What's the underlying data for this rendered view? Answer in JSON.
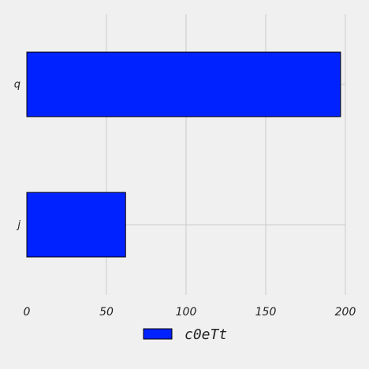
{
  "chart_data": {
    "type": "bar",
    "orientation": "horizontal",
    "categories": [
      "j",
      "q"
    ],
    "series": [
      {
        "name": "c0eTt",
        "values": [
          62,
          197
        ],
        "color": "#0022ff"
      }
    ],
    "xlim": [
      0,
      200
    ],
    "xticks": [
      "0",
      "50",
      "100",
      "150",
      "200"
    ],
    "grid": true,
    "legend": "bottom-center",
    "background": "#f0f0f0",
    "grid_color": "#cbcbcb",
    "bar_edge_color": "#000000"
  }
}
